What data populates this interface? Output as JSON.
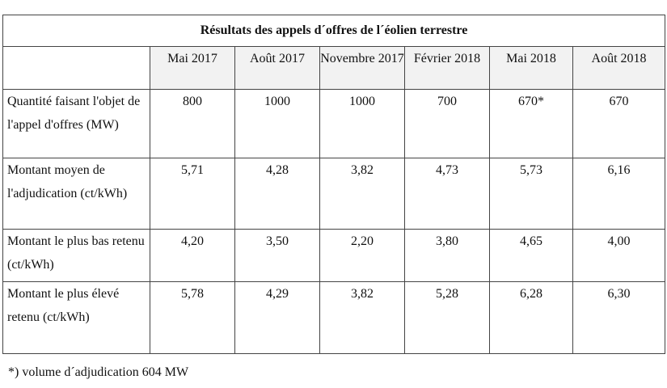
{
  "table": {
    "title": "Résultats des appels d´offres de l´éolien terrestre",
    "columns": [
      "Mai 2017",
      "Août 2017",
      "Novembre 2017",
      "Février 2018",
      "Mai  2018",
      "Août 2018"
    ],
    "rows": [
      {
        "label": "Quantité faisant l'objet de l'appel d'offres (MW)",
        "cells": [
          "800",
          "1000",
          "1000",
          "700",
          "670*",
          "670"
        ]
      },
      {
        "label": "Montant moyen de l'adjudication (ct/kWh)",
        "cells": [
          "5,71",
          "4,28",
          "3,82",
          "4,73",
          "5,73",
          "6,16"
        ]
      },
      {
        "label": "Montant le plus bas retenu (ct/kWh)",
        "cells": [
          "4,20",
          "3,50",
          "2,20",
          "3,80",
          "4,65",
          "4,00"
        ]
      },
      {
        "label": "Montant le plus élevé retenu (ct/kWh)",
        "cells": [
          "5,78",
          "4,29",
          "3,82",
          "5,28",
          "6,28",
          "6,30"
        ]
      }
    ]
  },
  "footnote": "*) volume d´adjudication 604 MW"
}
